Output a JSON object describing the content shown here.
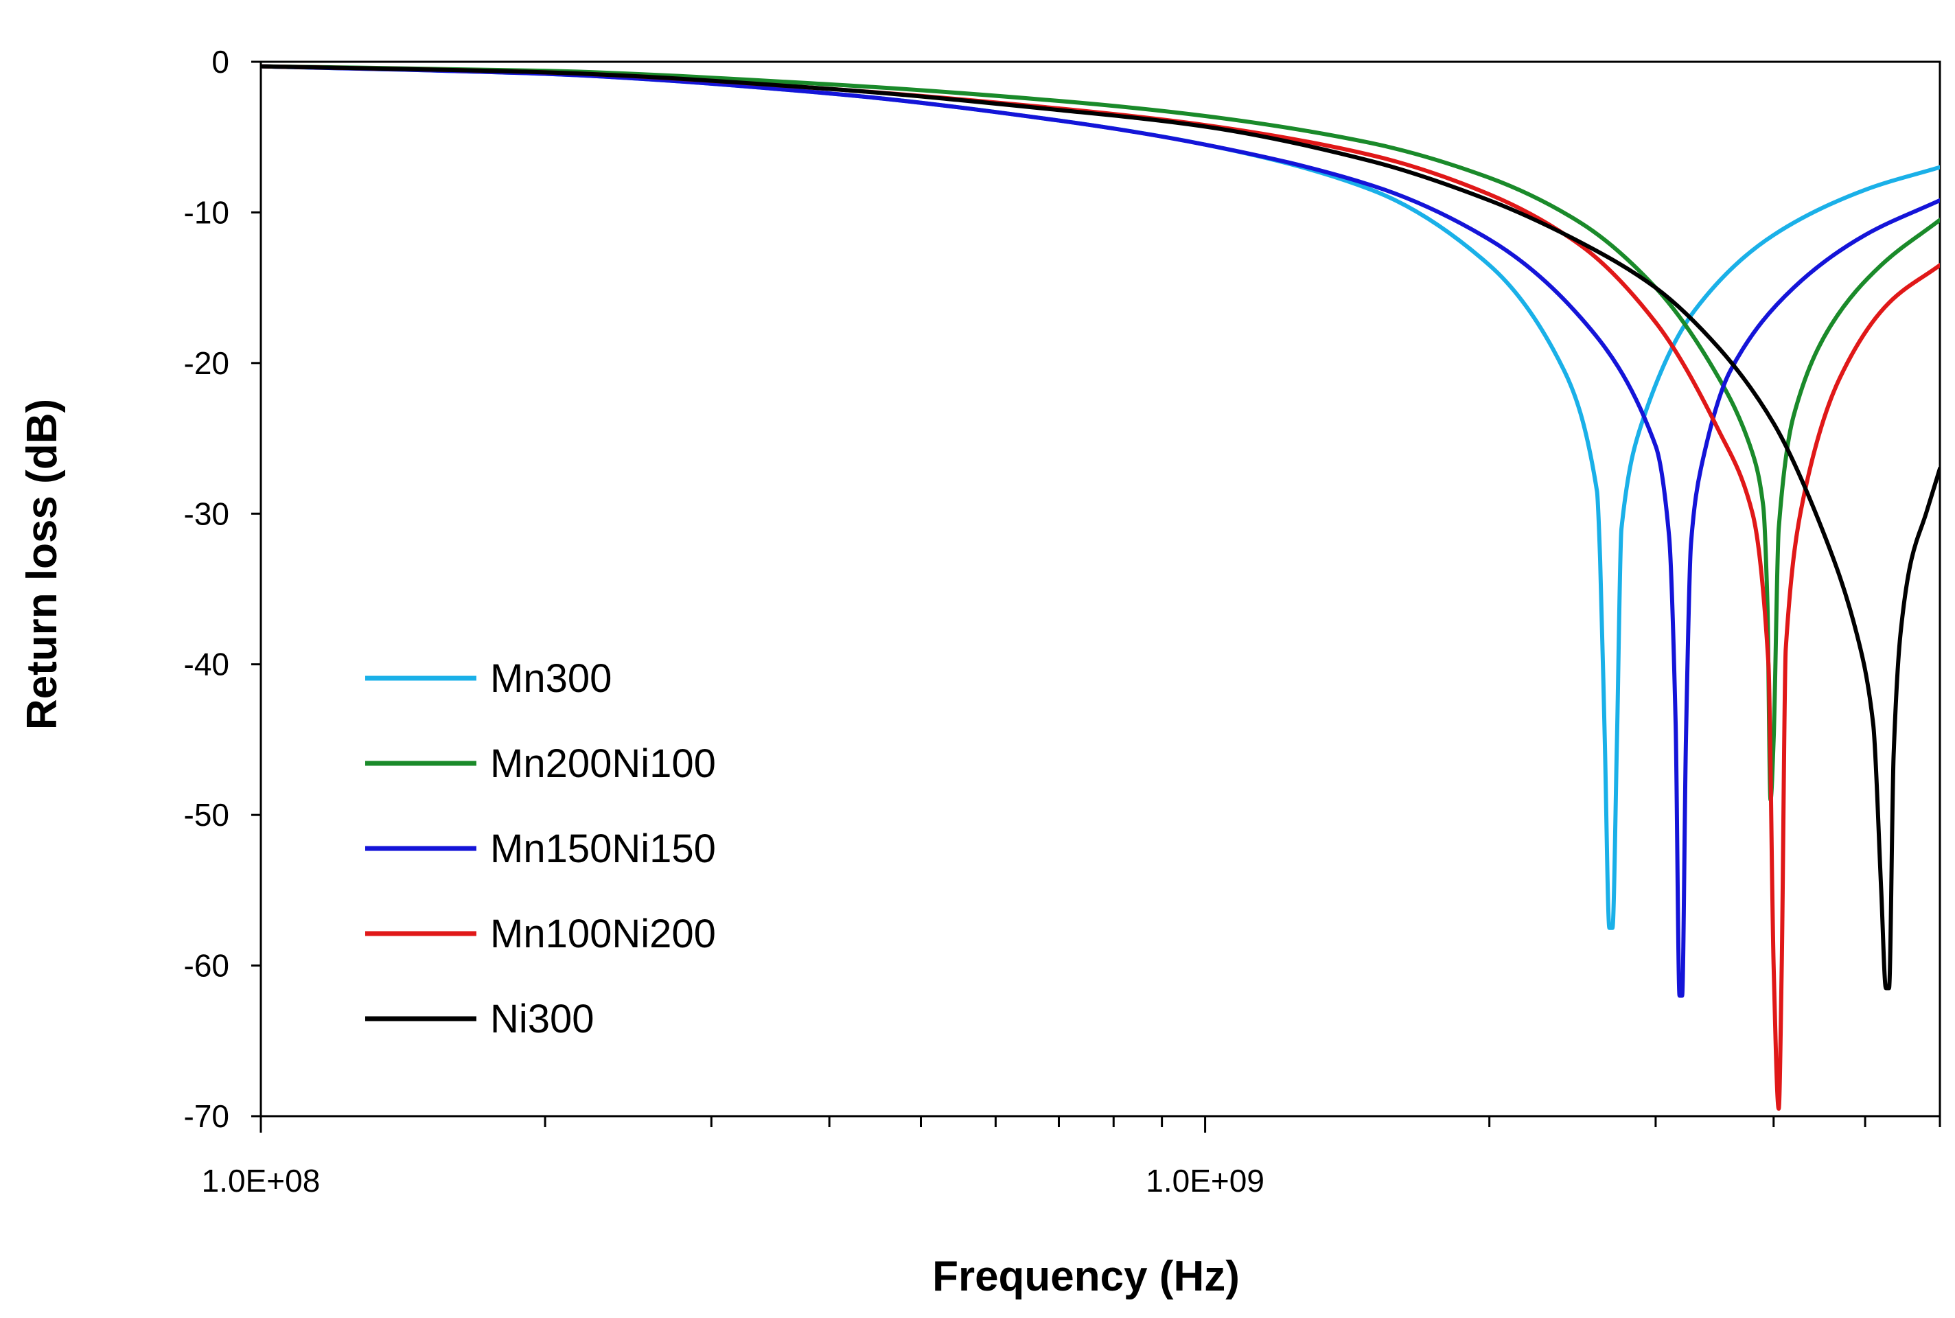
{
  "chart_data": {
    "type": "line",
    "title": "",
    "xlabel": "Frequency (Hz)",
    "ylabel": "Return loss (dB)",
    "xscale": "log",
    "xlim": [
      100000000.0,
      6000000000.0
    ],
    "ylim": [
      -70,
      0
    ],
    "grid": false,
    "legend_position": "bottom-left",
    "x_tick_labels": [
      {
        "value": 100000000.0,
        "label": "1.0E+08"
      },
      {
        "value": 1000000000.0,
        "label": "1.0E+09"
      }
    ],
    "x_minor_ticks": [
      200000000.0,
      300000000.0,
      400000000.0,
      500000000.0,
      600000000.0,
      700000000.0,
      800000000.0,
      900000000.0,
      2000000000.0,
      3000000000.0,
      4000000000.0,
      5000000000.0,
      6000000000.0
    ],
    "y_ticks": [
      0,
      -10,
      -20,
      -30,
      -40,
      -50,
      -60,
      -70
    ],
    "series": [
      {
        "name": "Mn300",
        "color": "#1ab0e8",
        "x": [
          100000000.0,
          200000000.0,
          400000000.0,
          700000000.0,
          1000000000.0,
          1500000000.0,
          2000000000.0,
          2400000000.0,
          2600000000.0,
          2620000000.0,
          2650000000.0,
          2680000000.0,
          2700000000.0,
          2730000000.0,
          2760000000.0,
          2900000000.0,
          3300000000.0,
          4000000000.0,
          5000000000.0,
          6000000000.0
        ],
        "y": [
          -0.3,
          -0.8,
          -2.1,
          -3.9,
          -5.5,
          -8.5,
          -13.5,
          -20.5,
          -28.5,
          -33,
          -45,
          -57.5,
          -57.5,
          -45,
          -31,
          -24,
          -16.5,
          -11.5,
          -8.5,
          -7.0
        ]
      },
      {
        "name": "Mn200Ni100",
        "color": "#1a8a2a",
        "x": [
          100000000.0,
          200000000.0,
          400000000.0,
          700000000.0,
          1000000000.0,
          1500000000.0,
          2000000000.0,
          2500000000.0,
          3000000000.0,
          3500000000.0,
          3800000000.0,
          3900000000.0,
          3940000000.0,
          3970000000.0,
          4000000000.0,
          4050000000.0,
          4200000000.0,
          4600000000.0,
          5200000000.0,
          6000000000.0
        ],
        "y": [
          -0.3,
          -0.6,
          -1.5,
          -2.6,
          -3.6,
          -5.4,
          -7.7,
          -10.7,
          -15,
          -21,
          -26,
          -29.5,
          -36,
          -49,
          -45,
          -31,
          -23.5,
          -17.5,
          -13.5,
          -10.5
        ]
      },
      {
        "name": "Mn150Ni150",
        "color": "#1414d8",
        "x": [
          100000000.0,
          200000000.0,
          400000000.0,
          700000000.0,
          1000000000.0,
          1500000000.0,
          2000000000.0,
          2500000000.0,
          3000000000.0,
          3100000000.0,
          3150000000.0,
          3180000000.0,
          3200000000.0,
          3230000000.0,
          3270000000.0,
          3350000000.0,
          3600000000.0,
          4200000000.0,
          5000000000.0,
          6000000000.0
        ],
        "y": [
          -0.3,
          -0.8,
          -2.1,
          -3.9,
          -5.5,
          -8.2,
          -11.8,
          -17.0,
          -25.5,
          -31.5,
          -44,
          -62,
          -62,
          -45,
          -32,
          -27,
          -20.5,
          -15,
          -11.5,
          -9.2
        ]
      },
      {
        "name": "Mn100Ni200",
        "color": "#e01818",
        "x": [
          100000000.0,
          200000000.0,
          400000000.0,
          700000000.0,
          1000000000.0,
          1500000000.0,
          2000000000.0,
          2500000000.0,
          3000000000.0,
          3500000000.0,
          3800000000.0,
          3950000000.0,
          4000000000.0,
          4050000000.0,
          4080000000.0,
          4120000000.0,
          4300000000.0,
          4700000000.0,
          5300000000.0,
          6000000000.0
        ],
        "y": [
          -0.3,
          -0.7,
          -1.8,
          -3.1,
          -4.2,
          -6.2,
          -8.8,
          -12.2,
          -17.3,
          -24.5,
          -30,
          -40,
          -60,
          -69.5,
          -60,
          -39,
          -29,
          -21,
          -16,
          -13.5
        ]
      },
      {
        "name": "Ni300",
        "color": "#000000",
        "x": [
          100000000.0,
          200000000.0,
          400000000.0,
          700000000.0,
          1000000000.0,
          1500000000.0,
          2000000000.0,
          2500000000.0,
          3000000000.0,
          3500000000.0,
          4000000000.0,
          4500000000.0,
          4900000000.0,
          5100000000.0,
          5200000000.0,
          5260000000.0,
          5300000000.0,
          5360000000.0,
          5450000000.0,
          5600000000.0,
          5800000000.0,
          6000000000.0
        ],
        "y": [
          -0.3,
          -0.7,
          -1.8,
          -3.2,
          -4.3,
          -6.6,
          -9.2,
          -12.0,
          -15.0,
          -19.0,
          -24.0,
          -31.0,
          -38.0,
          -44.0,
          -55.0,
          -61.5,
          -61.5,
          -46.0,
          -38.0,
          -33.0,
          -30.0,
          -27.0
        ]
      }
    ]
  }
}
